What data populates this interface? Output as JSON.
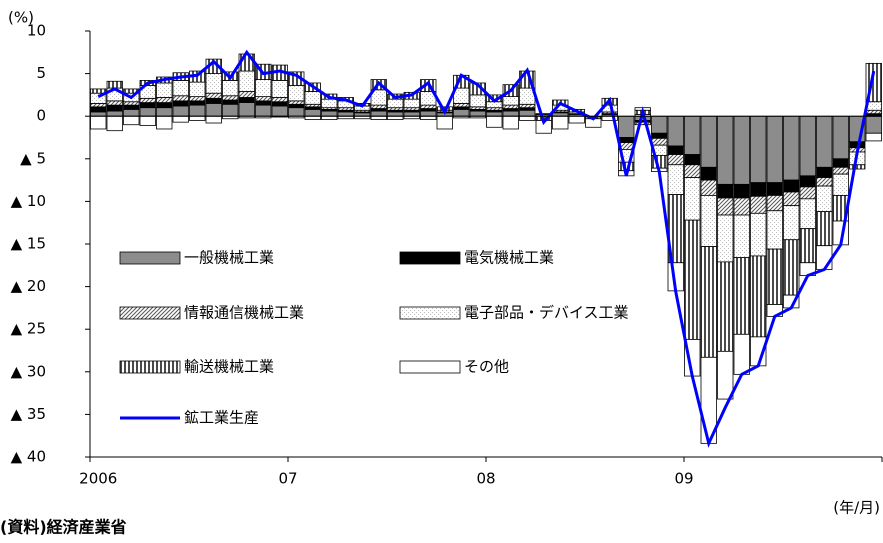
{
  "chart_data": {
    "type": "stacked-bar-line",
    "y_label": "(%)",
    "x_label": "(年/月)",
    "source": "(資料)経済産業省",
    "categories": [
      "2006",
      null,
      null,
      null,
      null,
      null,
      null,
      null,
      null,
      null,
      null,
      null,
      "07",
      null,
      null,
      null,
      null,
      null,
      null,
      null,
      null,
      null,
      null,
      null,
      "08",
      null,
      null,
      null,
      null,
      null,
      null,
      null,
      null,
      null,
      null,
      null,
      "09",
      null,
      null,
      null,
      null,
      null,
      null,
      null,
      null,
      null,
      null,
      null
    ],
    "ylim": [
      -40,
      10
    ],
    "yticks": [
      10,
      5,
      0,
      {
        "value": -5,
        "label": "▲ 5"
      },
      {
        "value": -10,
        "label": "▲ 10"
      },
      {
        "value": -15,
        "label": "▲ 15"
      },
      {
        "value": -20,
        "label": "▲ 20"
      },
      {
        "value": -25,
        "label": "▲ 25"
      },
      {
        "value": -30,
        "label": "▲ 30"
      },
      {
        "value": -35,
        "label": "▲ 35"
      },
      {
        "value": -40,
        "label": "▲ 40"
      }
    ],
    "series": [
      {
        "name": "一般機械工業",
        "color": "#8c8c8c",
        "hatch": "solid",
        "values": [
          0.5,
          0.6,
          0.8,
          1.0,
          1.0,
          1.2,
          1.3,
          1.5,
          1.4,
          1.6,
          1.3,
          1.2,
          1.0,
          0.8,
          0.6,
          0.5,
          0.4,
          0.6,
          0.5,
          0.5,
          0.6,
          0.4,
          0.8,
          0.6,
          0.5,
          0.6,
          0.7,
          0.2,
          0.4,
          0.2,
          0.0,
          0.2,
          -2.5,
          -0.5,
          -2.0,
          -3.5,
          -4.5,
          -6.0,
          -8.0,
          -8.0,
          -7.8,
          -7.8,
          -7.5,
          -7.0,
          -6.0,
          -5.0,
          -3.0,
          -2.0
        ]
      },
      {
        "name": "電気機械工業",
        "color": "#000000",
        "hatch": "solid",
        "values": [
          0.6,
          0.7,
          0.5,
          0.6,
          0.6,
          0.6,
          0.5,
          0.6,
          0.5,
          0.6,
          0.5,
          0.5,
          0.4,
          0.3,
          0.2,
          0.2,
          0.1,
          0.3,
          0.2,
          0.2,
          0.3,
          0.1,
          0.3,
          0.2,
          0.2,
          0.3,
          0.3,
          0.0,
          0.1,
          0.0,
          -0.1,
          0.1,
          -0.6,
          -0.2,
          -0.6,
          -1.0,
          -1.2,
          -1.5,
          -1.6,
          -1.6,
          -1.6,
          -1.5,
          -1.4,
          -1.3,
          -1.2,
          -1.0,
          -0.7,
          0.3
        ]
      },
      {
        "name": "情報通信機械工業",
        "color": "#555555",
        "hatch": "diagonal",
        "values": [
          0.4,
          0.5,
          0.4,
          0.5,
          0.6,
          0.6,
          0.5,
          0.6,
          0.5,
          0.7,
          0.5,
          0.5,
          0.4,
          0.3,
          0.2,
          0.3,
          0.2,
          0.4,
          0.3,
          0.3,
          0.4,
          0.2,
          0.4,
          0.3,
          0.3,
          0.4,
          0.4,
          0.1,
          0.2,
          0.1,
          0.0,
          0.2,
          -0.8,
          -0.3,
          -0.8,
          -1.2,
          -1.5,
          -1.8,
          -2.0,
          -2.0,
          -2.0,
          -1.8,
          -1.6,
          -1.4,
          -1.0,
          -0.8,
          -0.5,
          0.4
        ]
      },
      {
        "name": "電子部品・デバイス工業",
        "color": "#bdbdbd",
        "hatch": "dots",
        "values": [
          1.2,
          1.5,
          1.0,
          1.5,
          1.7,
          1.8,
          1.7,
          2.3,
          1.8,
          2.4,
          2.0,
          2.0,
          1.8,
          1.5,
          1.0,
          0.8,
          0.5,
          1.8,
          1.0,
          1.0,
          1.6,
          0.0,
          1.8,
          1.4,
          0.7,
          1.0,
          1.9,
          0.0,
          0.6,
          0.2,
          0.0,
          0.8,
          -1.5,
          0.2,
          -1.2,
          -3.5,
          -5.0,
          -6.0,
          -5.5,
          -5.0,
          -5.0,
          -4.5,
          -4.0,
          -3.5,
          -3.0,
          -2.5,
          -1.5,
          1.0
        ]
      },
      {
        "name": "輸送機械工業",
        "color": "#4a4a4a",
        "hatch": "vertical",
        "values": [
          0.5,
          0.8,
          0.5,
          0.6,
          0.7,
          0.9,
          1.3,
          1.7,
          1.0,
          2.0,
          1.8,
          1.8,
          1.6,
          1.0,
          0.6,
          0.4,
          0.3,
          1.2,
          0.6,
          0.8,
          1.4,
          0.4,
          1.5,
          1.4,
          0.8,
          1.4,
          2.0,
          -0.5,
          0.6,
          0.3,
          -0.2,
          0.8,
          -1.0,
          0.5,
          -1.5,
          -8.0,
          -14.0,
          -13.0,
          -10.5,
          -9.0,
          -9.5,
          -6.5,
          -6.5,
          -4.0,
          -4.0,
          -3.0,
          -0.5,
          4.5
        ]
      },
      {
        "name": "その他",
        "color": "#ffffff",
        "hatch": "solid",
        "values": [
          -1.5,
          -1.7,
          -1.0,
          -1.1,
          -1.5,
          -0.7,
          -0.5,
          -0.8,
          -0.3,
          -0.2,
          -0.2,
          -0.1,
          -0.2,
          -0.4,
          -0.4,
          -0.3,
          -0.3,
          -0.4,
          -0.4,
          -0.3,
          -0.4,
          -1.5,
          -0.2,
          -0.2,
          -1.3,
          -1.5,
          -0.5,
          -1.5,
          -1.5,
          -0.8,
          -1.0,
          -0.5,
          -0.6,
          0.3,
          -0.4,
          -3.3,
          -4.3,
          -10.1,
          -5.6,
          -4.7,
          -3.4,
          -1.4,
          -1.5,
          -1.5,
          -2.8,
          -2.8,
          0.0,
          -0.9
        ]
      }
    ],
    "line": {
      "name": "鉱工業生産",
      "color": "#0000ff",
      "values": [
        2.3,
        3.2,
        2.2,
        3.9,
        4.3,
        4.6,
        4.8,
        6.4,
        4.5,
        7.5,
        5.0,
        5.3,
        4.8,
        3.5,
        2.2,
        1.9,
        1.2,
        3.9,
        2.2,
        2.5,
        3.9,
        0.5,
        4.8,
        3.7,
        1.8,
        3.0,
        5.4,
        -0.7,
        1.5,
        0.6,
        -0.3,
        1.9,
        -7.0,
        0.5,
        -6.5,
        -20.6,
        -30.5,
        -38.4,
        -34.2,
        -30.3,
        -29.3,
        -23.5,
        -22.5,
        -18.7,
        -18.0,
        -15.1,
        -4.2,
        5.3
      ]
    }
  }
}
